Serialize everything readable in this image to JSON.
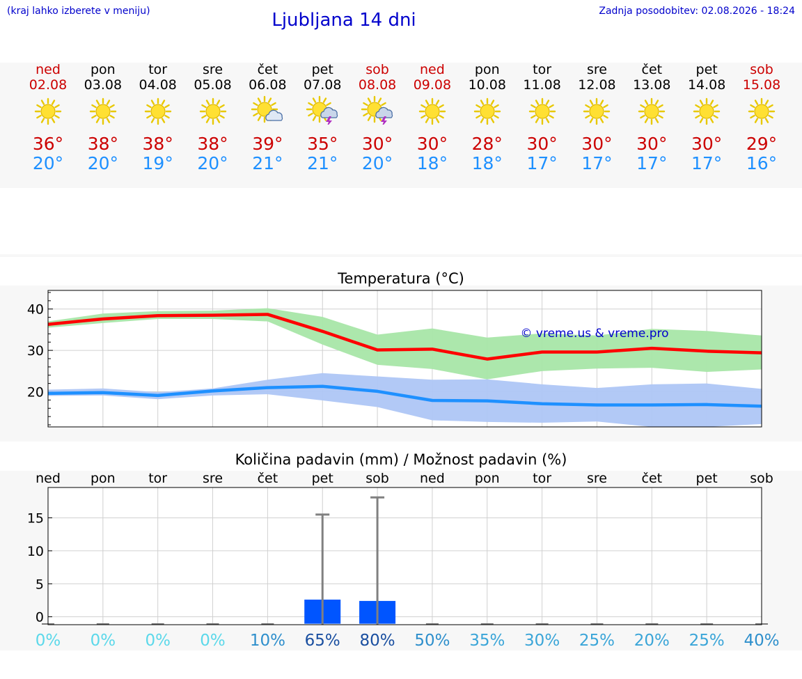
{
  "header": {
    "hint": "(kraj lahko izberete v meniju)",
    "title": "Ljubljana 14 dni",
    "updated": "Zadnja posodobitev: 02.08.2026 - 18:24"
  },
  "colors": {
    "weekend": "#cc0000",
    "tmax": "#cc0000",
    "tmin": "#1e90ff",
    "link": "#0000cc",
    "bar": "#0055ff"
  },
  "days": [
    {
      "name": "ned",
      "date": "02.08",
      "weekend": true,
      "icon": "sun-icon",
      "tmax": "36°",
      "tmin": "20°"
    },
    {
      "name": "pon",
      "date": "03.08",
      "weekend": false,
      "icon": "sun-icon",
      "tmax": "38°",
      "tmin": "20°"
    },
    {
      "name": "tor",
      "date": "04.08",
      "weekend": false,
      "icon": "sun-icon",
      "tmax": "38°",
      "tmin": "19°"
    },
    {
      "name": "sre",
      "date": "05.08",
      "weekend": false,
      "icon": "sun-icon",
      "tmax": "38°",
      "tmin": "20°"
    },
    {
      "name": "čet",
      "date": "06.08",
      "weekend": false,
      "icon": "sun-cloud-icon",
      "tmax": "39°",
      "tmin": "21°"
    },
    {
      "name": "pet",
      "date": "07.08",
      "weekend": false,
      "icon": "sun-storm-icon",
      "tmax": "35°",
      "tmin": "21°"
    },
    {
      "name": "sob",
      "date": "08.08",
      "weekend": true,
      "icon": "sun-storm-icon",
      "tmax": "30°",
      "tmin": "20°"
    },
    {
      "name": "ned",
      "date": "09.08",
      "weekend": true,
      "icon": "sun-icon",
      "tmax": "30°",
      "tmin": "18°"
    },
    {
      "name": "pon",
      "date": "10.08",
      "weekend": false,
      "icon": "sun-icon",
      "tmax": "28°",
      "tmin": "18°"
    },
    {
      "name": "tor",
      "date": "11.08",
      "weekend": false,
      "icon": "sun-icon",
      "tmax": "30°",
      "tmin": "17°"
    },
    {
      "name": "sre",
      "date": "12.08",
      "weekend": false,
      "icon": "sun-icon",
      "tmax": "30°",
      "tmin": "17°"
    },
    {
      "name": "čet",
      "date": "13.08",
      "weekend": false,
      "icon": "sun-icon",
      "tmax": "30°",
      "tmin": "17°"
    },
    {
      "name": "pet",
      "date": "14.08",
      "weekend": false,
      "icon": "sun-icon",
      "tmax": "30°",
      "tmin": "17°"
    },
    {
      "name": "sob",
      "date": "15.08",
      "weekend": true,
      "icon": "sun-icon",
      "tmax": "29°",
      "tmin": "16°"
    }
  ],
  "chart_data": [
    {
      "type": "line",
      "title": "Temperatura (°C)",
      "watermark": "© vreme.us & vreme.pro",
      "x": [
        "02.08",
        "03.08",
        "04.08",
        "05.08",
        "06.08",
        "07.08",
        "08.08",
        "09.08",
        "10.08",
        "11.08",
        "12.08",
        "13.08",
        "14.08",
        "15.08"
      ],
      "series": [
        {
          "values": [
            36.3,
            37.6,
            38.4,
            38.5,
            38.7,
            34.6,
            30.1,
            30.3,
            27.9,
            29.6,
            29.6,
            30.5,
            29.8,
            29.4
          ],
          "color": "#ff0000",
          "band_low": [
            35.5,
            36.6,
            37.6,
            37.6,
            37.0,
            31.4,
            26.5,
            25.5,
            23.0,
            25.0,
            25.6,
            25.8,
            24.8,
            25.4
          ],
          "band_high": [
            37.0,
            38.9,
            39.5,
            39.6,
            40.2,
            38.1,
            33.8,
            35.3,
            33.1,
            34.1,
            33.6,
            35.2,
            34.7,
            33.6
          ],
          "band_color": "#a8e6a8"
        },
        {
          "values": [
            19.6,
            19.8,
            19.1,
            20.2,
            21.0,
            21.3,
            20.1,
            17.9,
            17.8,
            17.1,
            16.8,
            16.8,
            16.9,
            16.5
          ],
          "color": "#1e90ff",
          "band_low": [
            19.0,
            19.1,
            18.2,
            19.1,
            19.4,
            17.9,
            16.3,
            13.1,
            12.7,
            12.5,
            12.8,
            11.5,
            11.5,
            12.2
          ],
          "band_high": [
            20.5,
            20.8,
            19.9,
            20.8,
            22.9,
            24.5,
            23.7,
            22.9,
            23.0,
            21.8,
            20.9,
            21.8,
            22.0,
            20.7
          ],
          "band_color": "#aec6f5"
        }
      ],
      "yticks": [
        20,
        30,
        40
      ],
      "ylim": [
        11.5,
        44.5
      ]
    },
    {
      "type": "bar",
      "title": "Količina padavin (mm) / Možnost padavin (%)",
      "categories": [
        "ned",
        "pon",
        "tor",
        "sre",
        "čet",
        "pet",
        "sob",
        "ned",
        "pon",
        "tor",
        "sre",
        "čet",
        "pet",
        "sob"
      ],
      "values": [
        0,
        0,
        0,
        0,
        0,
        2.6,
        2.4,
        0,
        0,
        0,
        0,
        0,
        0,
        0
      ],
      "max_values": [
        0,
        0,
        0,
        0,
        0,
        15.5,
        18.1,
        0,
        0,
        0,
        0,
        0,
        0,
        0
      ],
      "chance": [
        "0%",
        "0%",
        "0%",
        "0%",
        "10%",
        "65%",
        "80%",
        "50%",
        "35%",
        "30%",
        "25%",
        "20%",
        "25%",
        "40%"
      ],
      "chance_colors": [
        "#5bd8ea",
        "#5bd8ea",
        "#5bd8ea",
        "#5bd8ea",
        "#2e8fcc",
        "#1a4fa0",
        "#1a4fa0",
        "#2e8fcc",
        "#3aa5d8",
        "#3aa5d8",
        "#3aa5d8",
        "#3aa5d8",
        "#3aa5d8",
        "#2e8fcc"
      ],
      "yticks": [
        0,
        5,
        10,
        15
      ],
      "ylim": [
        -1.2,
        19.6
      ]
    }
  ]
}
